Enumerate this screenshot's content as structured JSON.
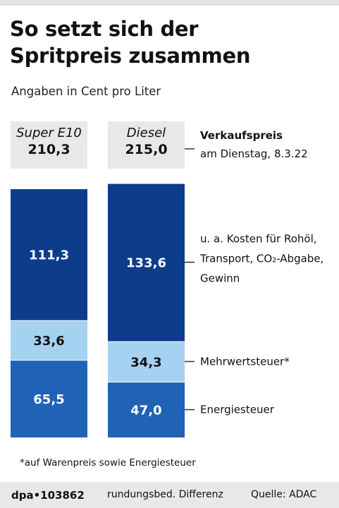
{
  "title_line1": "So setzt sich der",
  "title_line2": "Spritpreis zusammen",
  "subtitle": "Angaben in Cent pro Liter",
  "chart_data": {
    "type": "bar",
    "stacked": true,
    "categories": [
      "Super E10",
      "Diesel"
    ],
    "totals": [
      "210,3",
      "215,0"
    ],
    "total_values": [
      210.3,
      215.0
    ],
    "series": [
      {
        "name": "Energiesteuer",
        "values": [
          65.5,
          47.0
        ],
        "labels": [
          "65,5",
          "47,0"
        ],
        "color": "#1f62b6",
        "text_color": "#ffffff"
      },
      {
        "name": "Mehrwertsteuer*",
        "values": [
          33.6,
          34.3
        ],
        "labels": [
          "33,6",
          "34,3"
        ],
        "color": "#a6d2f2",
        "text_color": "#111111"
      },
      {
        "name": "u. a. Kosten für Rohöl, Transport, CO2-Abgabe, Gewinn",
        "values": [
          111.3,
          133.6
        ],
        "labels": [
          "111,3",
          "133,6"
        ],
        "color": "#0d3c8b",
        "text_color": "#ffffff"
      }
    ],
    "annotations": {
      "total_title": "Verkaufspreis",
      "total_date": "am Dienstag, 8.3.22",
      "costs": [
        "u. a. Kosten für Rohöl,",
        "Transport, CO₂-Abgabe,",
        "Gewinn"
      ],
      "vat": "Mehrwertsteuer*",
      "energy": "Energiesteuer"
    }
  },
  "footnote": "*auf Warenpreis sowie Energiesteuer",
  "credit": "dpa•103862",
  "note": "rundungsbed. Differenz",
  "source": "Quelle: ADAC"
}
